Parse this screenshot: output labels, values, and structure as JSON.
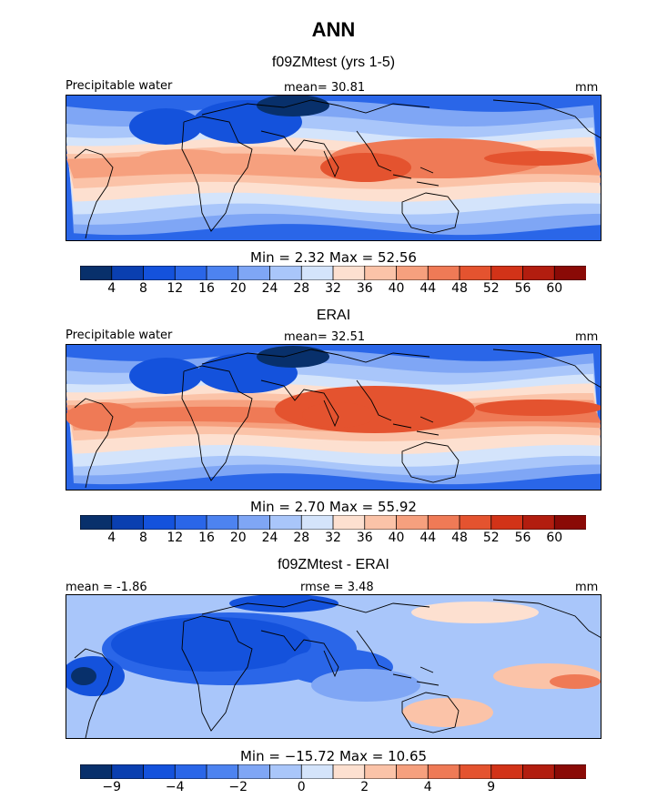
{
  "title": "ANN",
  "panels": [
    {
      "title": "f09ZMtest (yrs 1-5)",
      "left_label": "Precipitable water",
      "center_label": "mean=  30.81",
      "units": "mm",
      "minmax": "Min =    2.32  Max =   52.56",
      "colorbar": {
        "colors": [
          "#08306b",
          "#0a3fb0",
          "#1452dc",
          "#2a66e8",
          "#4d83f0",
          "#7fa6f5",
          "#a9c6fa",
          "#d4e4fb",
          "#fde0d0",
          "#fbc3a8",
          "#f6a07e",
          "#ef7a56",
          "#e4532f",
          "#d23318",
          "#b21d0f",
          "#8a0a06"
        ],
        "labels": [
          "4",
          "8",
          "12",
          "16",
          "20",
          "24",
          "28",
          "32",
          "36",
          "40",
          "44",
          "48",
          "52",
          "56",
          "60"
        ]
      }
    },
    {
      "title": "ERAI",
      "left_label": "Precipitable water",
      "center_label": "mean=  32.51",
      "units": "mm",
      "minmax": "Min =    2.70  Max =   55.92",
      "colorbar": {
        "colors": [
          "#08306b",
          "#0a3fb0",
          "#1452dc",
          "#2a66e8",
          "#4d83f0",
          "#7fa6f5",
          "#a9c6fa",
          "#d4e4fb",
          "#fde0d0",
          "#fbc3a8",
          "#f6a07e",
          "#ef7a56",
          "#e4532f",
          "#d23318",
          "#b21d0f",
          "#8a0a06"
        ],
        "labels": [
          "4",
          "8",
          "12",
          "16",
          "20",
          "24",
          "28",
          "32",
          "36",
          "40",
          "44",
          "48",
          "52",
          "56",
          "60"
        ]
      }
    },
    {
      "title": "f09ZMtest - ERAI",
      "left_label": "mean =  -1.86",
      "center_label": "rmse =    3.48",
      "units": "mm",
      "minmax": "Min = −15.72  Max =   10.65",
      "colorbar": {
        "colors": [
          "#08306b",
          "#0a3fb0",
          "#1452dc",
          "#2a66e8",
          "#4d83f0",
          "#7fa6f5",
          "#a9c6fa",
          "#d4e4fb",
          "#fde0d0",
          "#fbc3a8",
          "#f6a07e",
          "#ef7a56",
          "#e4532f",
          "#d23318",
          "#b21d0f",
          "#8a0a06"
        ],
        "labels": [
          "−9",
          "",
          "−4",
          "",
          "−2",
          "",
          "0",
          "",
          "2",
          "",
          "4",
          "",
          "9",
          "",
          ""
        ]
      }
    }
  ],
  "chart_data": [
    {
      "type": "heatmap",
      "title": "f09ZMtest (yrs 1-5)",
      "field": "Precipitable water",
      "units": "mm",
      "mean": 30.81,
      "min": 2.32,
      "max": 52.56,
      "contour_levels": [
        4,
        8,
        12,
        16,
        20,
        24,
        28,
        32,
        36,
        40,
        44,
        48,
        52,
        56,
        60
      ]
    },
    {
      "type": "heatmap",
      "title": "ERAI",
      "field": "Precipitable water",
      "units": "mm",
      "mean": 32.51,
      "min": 2.7,
      "max": 55.92,
      "contour_levels": [
        4,
        8,
        12,
        16,
        20,
        24,
        28,
        32,
        36,
        40,
        44,
        48,
        52,
        56,
        60
      ]
    },
    {
      "type": "heatmap",
      "title": "f09ZMtest - ERAI",
      "units": "mm",
      "mean": -1.86,
      "rmse": 3.48,
      "min": -15.72,
      "max": 10.65,
      "colorbar_tick_labels": [
        "-9",
        "-4",
        "-2",
        "0",
        "2",
        "4",
        "9"
      ]
    }
  ]
}
